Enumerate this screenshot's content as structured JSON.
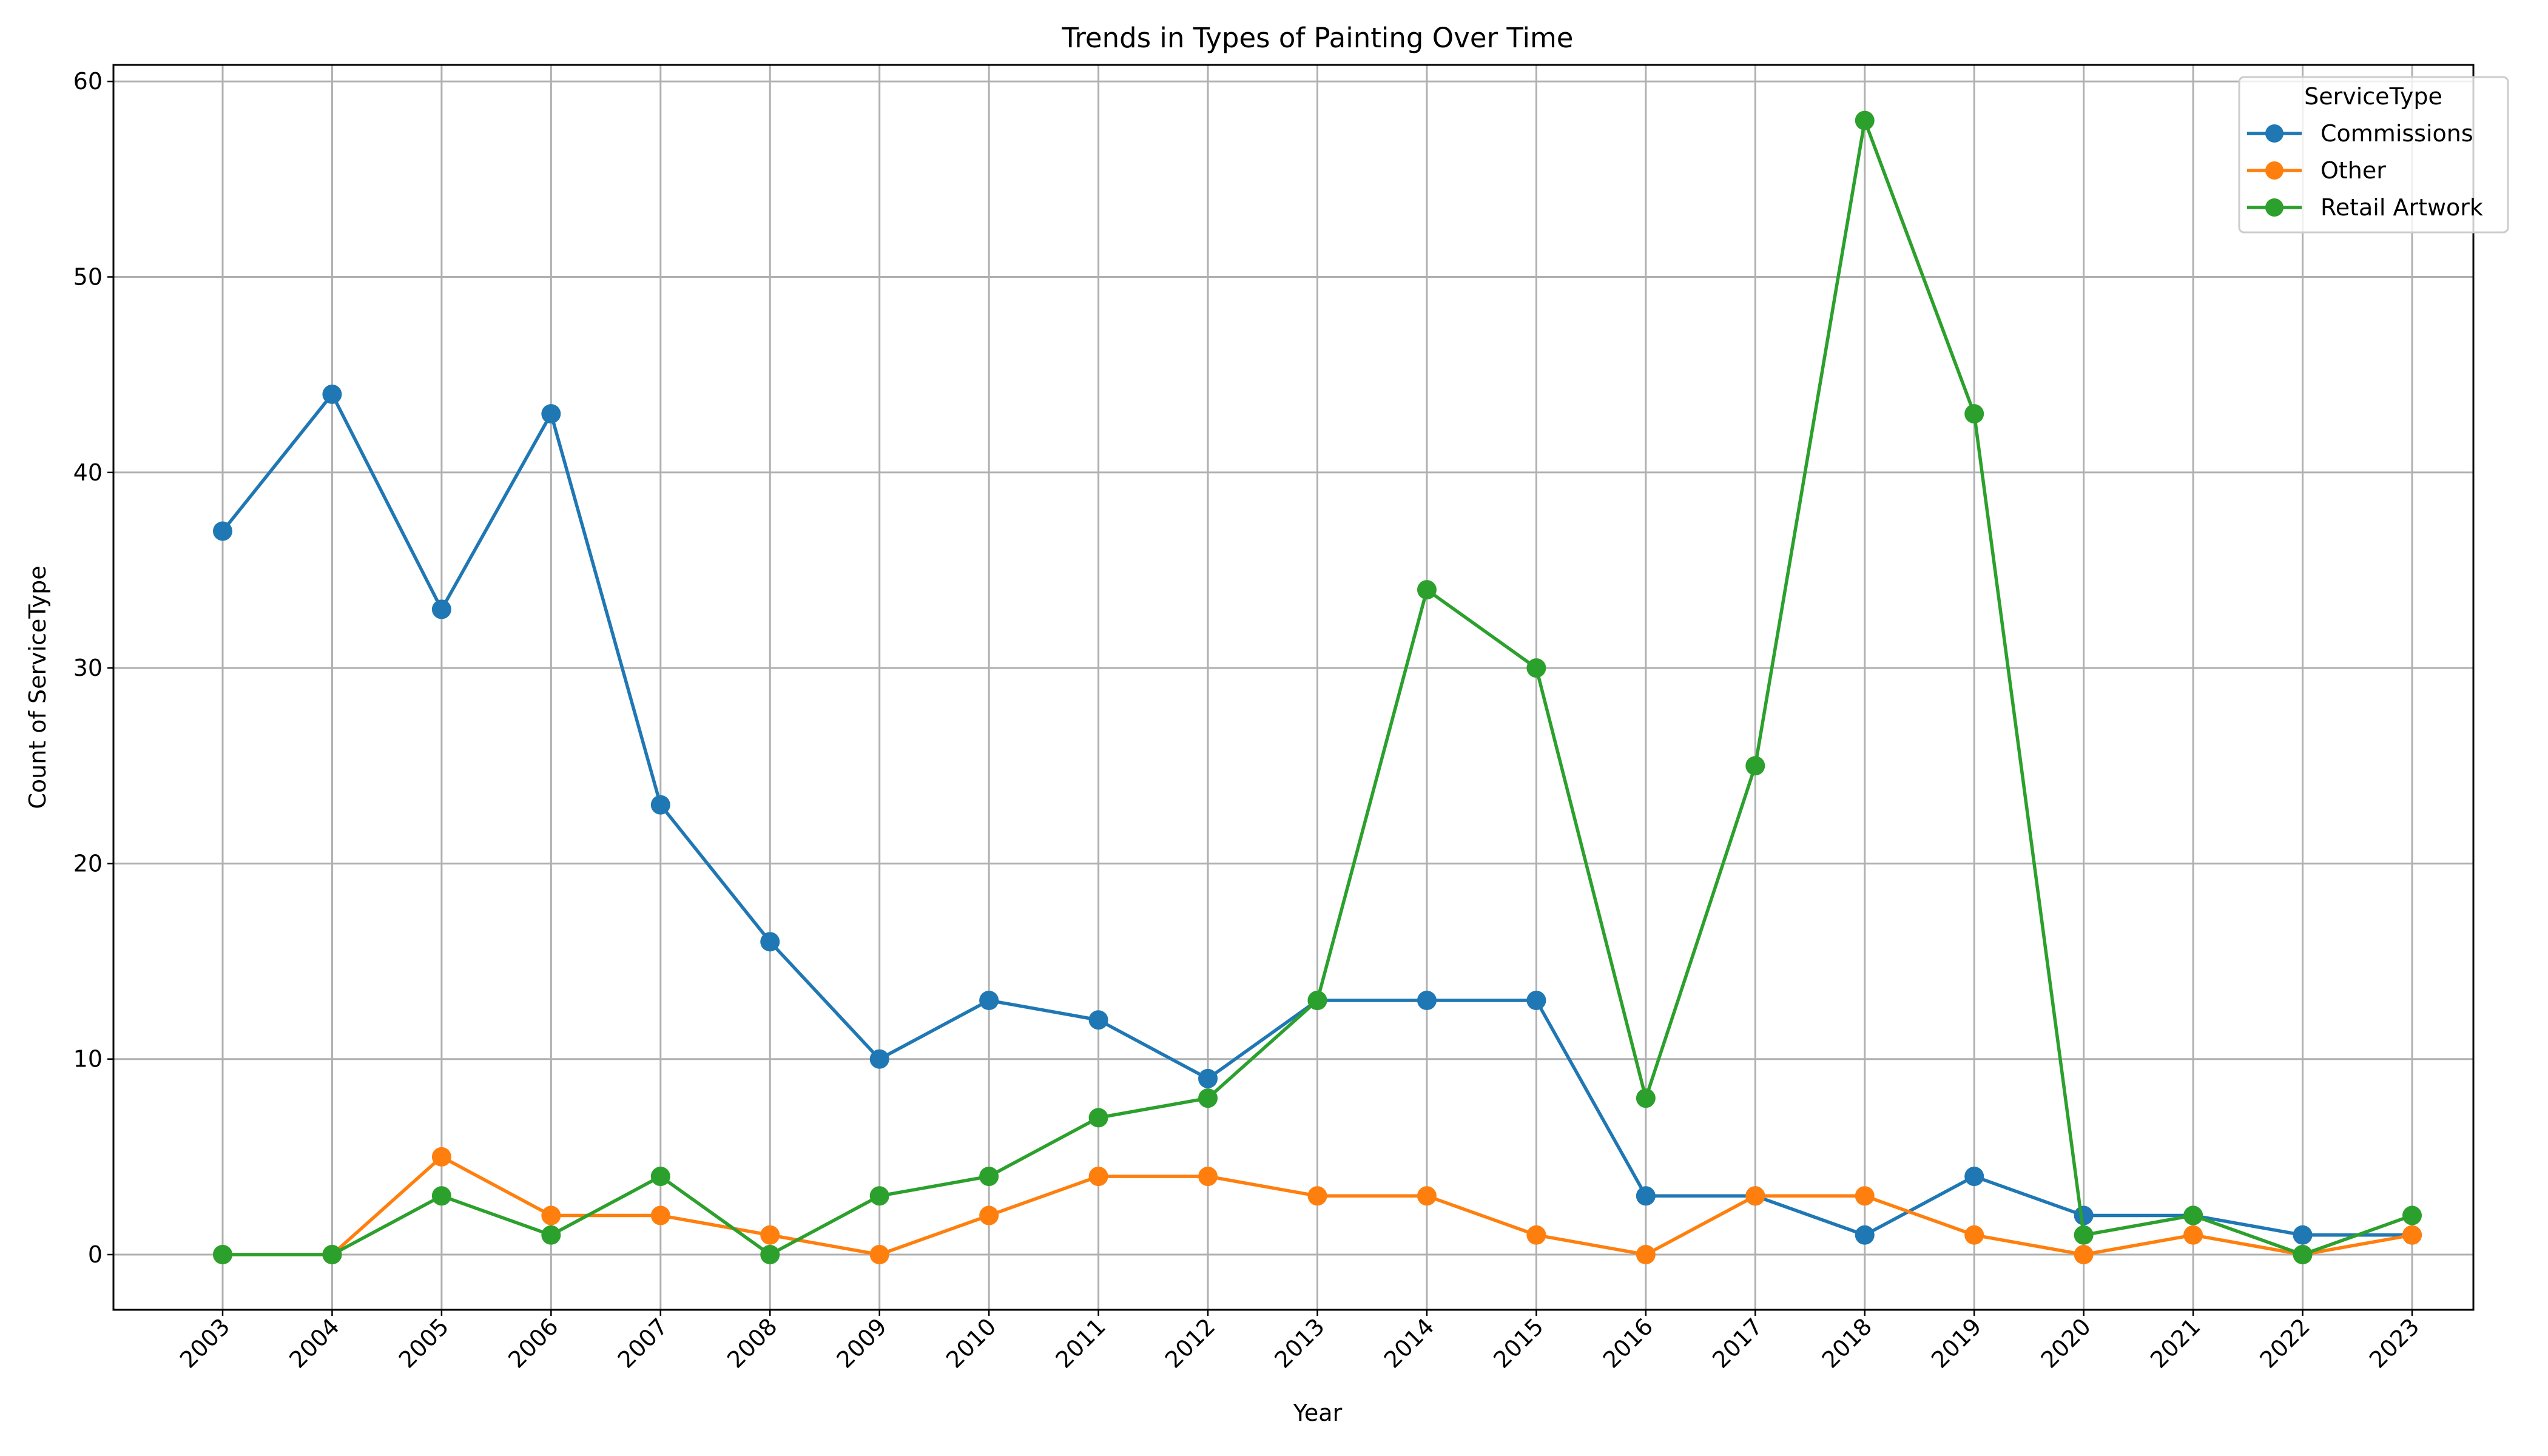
{
  "chart_data": {
    "type": "line",
    "title": "Trends in Types of Painting Over Time",
    "xlabel": "Year",
    "ylabel": "Count of ServiceType",
    "x": [
      "2003",
      "2004",
      "2005",
      "2006",
      "2007",
      "2008",
      "2009",
      "2010",
      "2011",
      "2012",
      "2013",
      "2014",
      "2015",
      "2016",
      "2017",
      "2018",
      "2019",
      "2020",
      "2021",
      "2022",
      "2023"
    ],
    "series": [
      {
        "name": "Commissions",
        "color": "#1f77b4",
        "values": [
          37,
          44,
          33,
          43,
          23,
          16,
          10,
          13,
          12,
          9,
          13,
          13,
          13,
          3,
          3,
          1,
          4,
          2,
          2,
          1,
          1
        ]
      },
      {
        "name": "Other",
        "color": "#ff7f0e",
        "values": [
          0,
          0,
          5,
          2,
          2,
          1,
          0,
          2,
          4,
          4,
          3,
          3,
          1,
          0,
          3,
          3,
          1,
          0,
          1,
          0,
          1
        ]
      },
      {
        "name": "Retail Artwork",
        "color": "#2ca02c",
        "values": [
          0,
          0,
          3,
          1,
          4,
          0,
          3,
          4,
          7,
          8,
          13,
          34,
          30,
          8,
          25,
          58,
          43,
          1,
          2,
          0,
          2
        ]
      }
    ],
    "yticks": [
      0,
      10,
      20,
      30,
      40,
      50,
      60
    ],
    "ylim": [
      -3,
      61
    ],
    "grid": true,
    "legend": {
      "title": "ServiceType",
      "position": "upper right"
    },
    "xtick_rotation": 45
  }
}
